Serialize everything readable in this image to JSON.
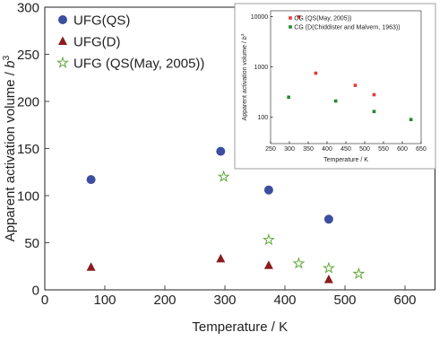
{
  "chart_data": [
    {
      "type": "scatter",
      "xlabel": "Temperature / K",
      "ylabel": "Apparent activation volume / ",
      "ylabel_unit": "b",
      "ylabel_unit_power": "3",
      "xlim": [
        0,
        650
      ],
      "xticks": [
        0,
        100,
        200,
        300,
        400,
        500,
        600
      ],
      "ylim": [
        0,
        300
      ],
      "yticks": [
        0,
        50,
        100,
        150,
        200,
        250,
        300
      ],
      "ylog": false,
      "legend": "upper left",
      "series": [
        {
          "name": "UFG(QS)",
          "color": "#3b4ea0",
          "marker": "circle",
          "x": [
            77,
            293,
            373,
            473
          ],
          "values": [
            117,
            147,
            106,
            75
          ]
        },
        {
          "name": "UFG(D)",
          "color": "#8b1c1c",
          "marker": "triangle",
          "x": [
            77,
            293,
            373,
            473
          ],
          "values": [
            24,
            33,
            26,
            11
          ]
        },
        {
          "name": "UFG (QS(May, 2005))",
          "color": "#5fa83a",
          "marker": "star",
          "x": [
            298,
            373,
            423,
            473,
            523
          ],
          "values": [
            120,
            53,
            28,
            23,
            17
          ]
        }
      ]
    },
    {
      "type": "scatter",
      "xlabel": "Temperature / K",
      "ylabel": "Apparent activation volume / ",
      "ylabel_unit": "b",
      "ylabel_unit_power": "3",
      "xlim": [
        250,
        650
      ],
      "xticks": [
        250,
        300,
        350,
        400,
        450,
        500,
        550,
        600,
        650
      ],
      "ylim": [
        30,
        13000
      ],
      "yticks": [
        100,
        1000,
        10000
      ],
      "ylog": true,
      "legend": "upper left",
      "series": [
        {
          "name": "CG (QS(May, 2005))",
          "color": "#e8383a",
          "marker": "square",
          "x": [
            325,
            370,
            475,
            525
          ],
          "values": [
            9800,
            750,
            430,
            280
          ]
        },
        {
          "name": "CG (D(Chiddister and Malvern, 1963))",
          "color": "#1e8a2a",
          "marker": "square",
          "x": [
            298,
            423,
            525,
            623
          ],
          "values": [
            250,
            210,
            130,
            90
          ]
        }
      ]
    }
  ]
}
